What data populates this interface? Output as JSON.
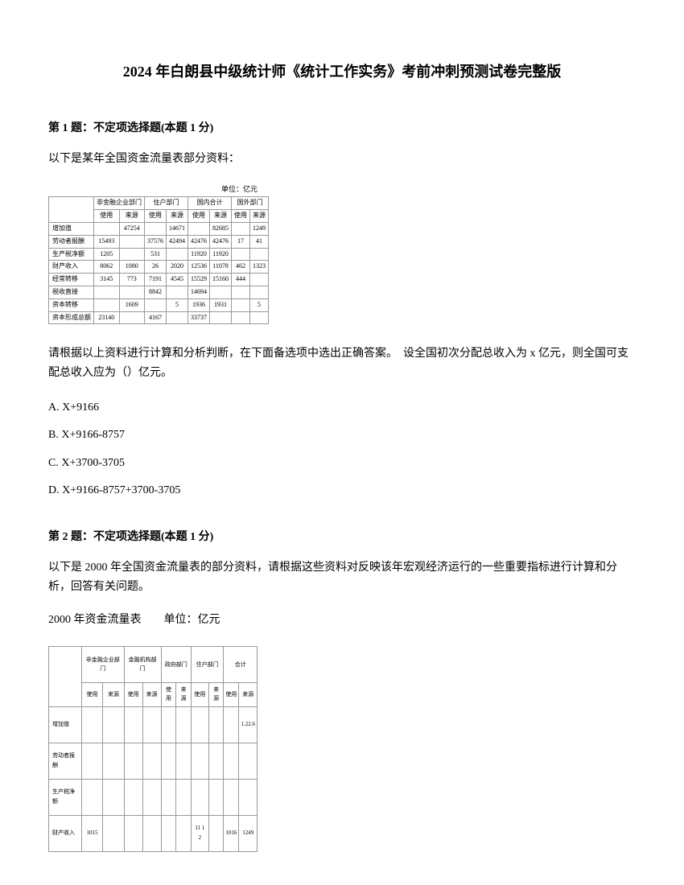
{
  "document": {
    "title": "2024 年白朗县中级统计师《统计工作实务》考前冲刺预测试卷完整版"
  },
  "question1": {
    "header": "第 1 题：不定项选择题(本题 1 分)",
    "intro": "以下是某年全国资金流量表部分资料：",
    "table_unit": "单位：亿元",
    "table": {
      "header_groups": [
        "非金融企业部门",
        "住户部门",
        "国内合计",
        "国外部门"
      ],
      "sub_headers": [
        "使用",
        "来源",
        "使用",
        "来源",
        "使用",
        "来源",
        "使用",
        "来源"
      ],
      "rows": [
        {
          "label": "增加值",
          "cells": [
            "",
            "47254",
            "",
            "14671",
            "",
            "82685",
            "",
            "1249"
          ]
        },
        {
          "label": "劳动者报酬",
          "cells": [
            "15493",
            "",
            "37576",
            "42494",
            "42476",
            "42476",
            "17",
            "41"
          ]
        },
        {
          "label": "生产税净额",
          "cells": [
            "1205",
            "",
            "531",
            "",
            "11920",
            "11920",
            "",
            ""
          ]
        },
        {
          "label": "财产收入",
          "cells": [
            "8062",
            "1080",
            "26",
            "2020",
            "12536",
            "11078",
            "462",
            "1323"
          ]
        },
        {
          "label": "经常转移",
          "cells": [
            "3145",
            "773",
            "7191",
            "4545",
            "15529",
            "15160",
            "444",
            ""
          ]
        },
        {
          "label": "税收直接",
          "cells": [
            "",
            "",
            "8842",
            "",
            "14694",
            "",
            "",
            ""
          ]
        },
        {
          "label": "资本转移",
          "cells": [
            "",
            "1609",
            "",
            "5",
            "1936",
            "1931",
            "",
            "5"
          ]
        },
        {
          "label": "资本形成总额",
          "cells": [
            "23140",
            "",
            "4167",
            "",
            "33737",
            "",
            "",
            ""
          ]
        }
      ]
    },
    "prompt": "请根据以上资料进行计算和分析判断，在下面备选项中选出正确答案。　设全国初次分配总收入为 x 亿元，则全国可支配总收入应为（）亿元。",
    "options": {
      "a": "A. X+9166",
      "b": "B. X+9166-8757",
      "c": "C. X+3700-3705",
      "d": "D. X+9166-8757+3700-3705"
    }
  },
  "question2": {
    "header": "第 2 题：不定项选择题(本题 1 分)",
    "intro": "以下是 2000 年全国资金流量表的部分资料，请根据这些资料对反映该年宏观经济运行的一些重要指标进行计算和分析，回答有关问题。",
    "subtitle": "2000 年资金流量表　　单位：亿元",
    "table": {
      "header_groups": [
        "非金融企业部门",
        "金融机构部门",
        "政府部门",
        "住户部门",
        "合计"
      ],
      "sub_headers": [
        "使用",
        "来源",
        "使用",
        "来源",
        "使用",
        "来源",
        "使用",
        "来源",
        "使用",
        "来源"
      ],
      "rows": [
        {
          "label": "增加值",
          "cells": [
            "",
            "",
            "",
            "",
            "",
            "",
            "",
            "",
            "",
            "1.22.6"
          ]
        },
        {
          "label": "劳动者报酬",
          "cells": [
            "",
            "",
            "",
            "",
            "",
            "",
            "",
            "",
            "",
            ""
          ]
        },
        {
          "label": "生产税净额",
          "cells": [
            "",
            "",
            "",
            "",
            "",
            "",
            "",
            "",
            "",
            ""
          ]
        },
        {
          "label": "财产收入",
          "cells": [
            "1015",
            "",
            "",
            "",
            "",
            "",
            "11 1 2",
            "",
            "1016",
            "1249"
          ]
        }
      ]
    }
  }
}
